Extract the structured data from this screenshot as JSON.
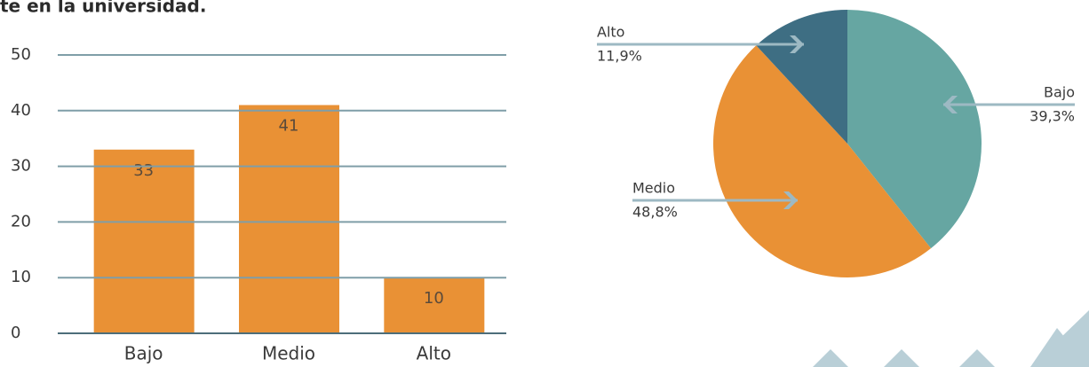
{
  "chart_data": [
    {
      "type": "bar",
      "title": "te en la universidad.",
      "categories": [
        "Bajo",
        "Medio",
        "Alto"
      ],
      "values": [
        33,
        41,
        10
      ],
      "color": "#e99135",
      "ylim": [
        0,
        50
      ],
      "yticks": [
        0,
        10,
        20,
        30,
        40,
        50
      ],
      "grid": true
    },
    {
      "type": "pie",
      "categories": [
        "Bajo",
        "Medio",
        "Alto"
      ],
      "values": [
        39.3,
        48.8,
        11.9
      ],
      "value_labels": [
        "39,3%",
        "48,8%",
        "11,9%"
      ],
      "colors": [
        "#66a6a2",
        "#e99135",
        "#3e6e83"
      ]
    }
  ]
}
